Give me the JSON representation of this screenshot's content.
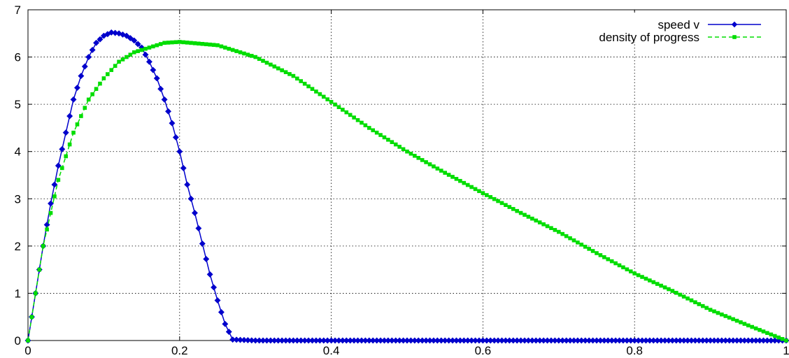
{
  "chart_data": {
    "type": "line",
    "title": "",
    "xlabel": "",
    "ylabel": "",
    "xlim": [
      0,
      1
    ],
    "ylim": [
      0,
      7
    ],
    "x_ticks": [
      "0",
      "0.2",
      "0.4",
      "0.6",
      "0.8",
      "1"
    ],
    "y_ticks": [
      "0",
      "1",
      "2",
      "3",
      "4",
      "5",
      "6",
      "7"
    ],
    "grid": true,
    "legend_position": "top-right",
    "series": [
      {
        "name": "speed v",
        "color": "#0000cc",
        "line_style": "solid",
        "marker": "diamond",
        "x": [
          0.0,
          0.01,
          0.02,
          0.03,
          0.04,
          0.05,
          0.06,
          0.07,
          0.08,
          0.09,
          0.1,
          0.11,
          0.12,
          0.13,
          0.14,
          0.15,
          0.16,
          0.17,
          0.18,
          0.19,
          0.2,
          0.21,
          0.22,
          0.23,
          0.24,
          0.25,
          0.26,
          0.27,
          0.3,
          0.4,
          0.5,
          0.6,
          0.7,
          0.8,
          0.9,
          1.0
        ],
        "y": [
          0.0,
          1.0,
          2.0,
          2.9,
          3.7,
          4.4,
          5.1,
          5.6,
          6.0,
          6.3,
          6.45,
          6.52,
          6.5,
          6.45,
          6.35,
          6.2,
          5.9,
          5.55,
          5.1,
          4.6,
          4.0,
          3.3,
          2.7,
          2.05,
          1.4,
          0.85,
          0.35,
          0.02,
          0.0,
          0.0,
          0.0,
          0.0,
          0.0,
          0.0,
          0.0,
          0.0
        ]
      },
      {
        "name": "density of progress",
        "color": "#00dd00",
        "line_style": "dashed",
        "marker": "square",
        "x": [
          0.0,
          0.02,
          0.04,
          0.06,
          0.08,
          0.1,
          0.12,
          0.14,
          0.16,
          0.18,
          0.2,
          0.25,
          0.3,
          0.35,
          0.4,
          0.45,
          0.5,
          0.55,
          0.6,
          0.65,
          0.7,
          0.75,
          0.8,
          0.85,
          0.9,
          0.95,
          1.0
        ],
        "y": [
          0.0,
          2.0,
          3.4,
          4.4,
          5.1,
          5.55,
          5.9,
          6.1,
          6.2,
          6.3,
          6.32,
          6.25,
          6.0,
          5.6,
          5.05,
          4.5,
          4.0,
          3.55,
          3.12,
          2.7,
          2.3,
          1.85,
          1.42,
          1.05,
          0.65,
          0.32,
          0.0
        ]
      }
    ]
  }
}
